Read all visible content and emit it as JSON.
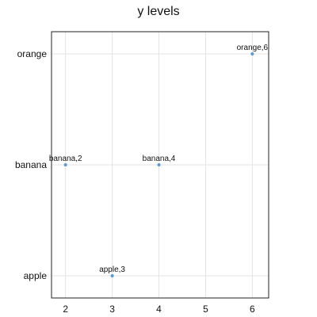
{
  "chart_data": {
    "type": "scatter",
    "title": "y levels",
    "xlabel": "",
    "ylabel": "",
    "x_ticks": [
      2,
      3,
      4,
      5,
      6
    ],
    "y_levels": [
      "apple",
      "banana",
      "orange"
    ],
    "xlim": [
      1.7,
      6.35
    ],
    "grid": true,
    "points": [
      {
        "x": 3,
        "y": "apple",
        "label": "apple,3"
      },
      {
        "x": 2,
        "y": "banana",
        "label": "banana,2"
      },
      {
        "x": 4,
        "y": "banana",
        "label": "banana,4"
      },
      {
        "x": 6,
        "y": "orange",
        "label": "orange,6"
      }
    ],
    "colors": {
      "point": "#5b9bd5",
      "grid": "#e3e3e3",
      "frame": "#222222"
    }
  }
}
